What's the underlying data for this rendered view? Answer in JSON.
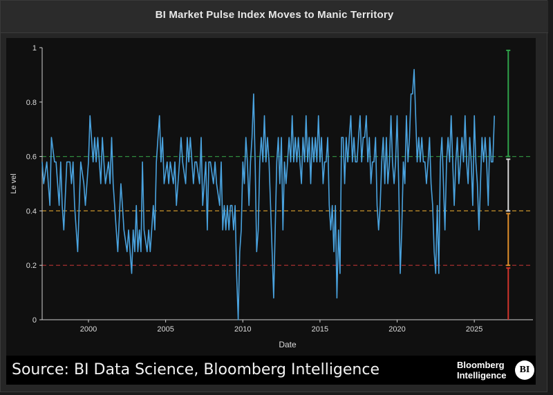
{
  "header": {
    "title": "BI Market Pulse Index Moves to Manic Territory"
  },
  "footer": {
    "source": "Source: BI Data Science, Bloomberg Intelligence",
    "logo_line1": "Bloomberg",
    "logo_line2": "Intelligence",
    "logo_mark": "BI"
  },
  "chart_data": {
    "type": "line",
    "xlabel": "Date",
    "ylabel": "Le vel",
    "xlim": [
      1997.0,
      2028.8
    ],
    "ylim": [
      0,
      1
    ],
    "x_ticks": [
      2000,
      2005,
      2010,
      2015,
      2020,
      2025
    ],
    "y_ticks": [
      0,
      0.2,
      0.4,
      0.6,
      0.8,
      1
    ],
    "y_tick_labels": [
      "0",
      "0.2",
      "0.4",
      "0.6",
      "0.8",
      "1"
    ],
    "line_color": "#4aa3df",
    "reference_lines": [
      {
        "y": 0.6,
        "color": "#2e8b3e",
        "style": "dashed"
      },
      {
        "y": 0.4,
        "color": "#c8922a",
        "style": "dashed"
      },
      {
        "y": 0.2,
        "color": "#b83232",
        "style": "dashed"
      }
    ],
    "range_bar": {
      "x": 2027.2,
      "segments": [
        {
          "from": 0.6,
          "to": 0.99,
          "color": "#2fa34a"
        },
        {
          "from": 0.4,
          "to": 0.59,
          "color": "#d8d8d8"
        },
        {
          "from": 0.2,
          "to": 0.39,
          "color": "#e08f2a"
        },
        {
          "from": 0.0,
          "to": 0.19,
          "color": "#d2342c"
        }
      ]
    },
    "series": [
      {
        "values": [
          [
            1997.0,
            0.58
          ],
          [
            1997.1,
            0.5
          ],
          [
            1997.3,
            0.58
          ],
          [
            1997.4,
            0.5
          ],
          [
            1997.5,
            0.42
          ],
          [
            1997.6,
            0.67
          ],
          [
            1997.8,
            0.58
          ],
          [
            1997.9,
            0.58
          ],
          [
            1998.1,
            0.42
          ],
          [
            1998.2,
            0.58
          ],
          [
            1998.3,
            0.42
          ],
          [
            1998.4,
            0.33
          ],
          [
            1998.6,
            0.58
          ],
          [
            1998.8,
            0.58
          ],
          [
            1998.9,
            0.5
          ],
          [
            1999.0,
            0.58
          ],
          [
            1999.1,
            0.42
          ],
          [
            1999.3,
            0.25
          ],
          [
            1999.4,
            0.42
          ],
          [
            1999.5,
            0.58
          ],
          [
            1999.7,
            0.5
          ],
          [
            1999.8,
            0.42
          ],
          [
            2000.0,
            0.58
          ],
          [
            2000.1,
            0.75
          ],
          [
            2000.3,
            0.58
          ],
          [
            2000.4,
            0.67
          ],
          [
            2000.5,
            0.58
          ],
          [
            2000.6,
            0.67
          ],
          [
            2000.8,
            0.5
          ],
          [
            2000.9,
            0.67
          ],
          [
            2001.0,
            0.58
          ],
          [
            2001.1,
            0.5
          ],
          [
            2001.3,
            0.58
          ],
          [
            2001.4,
            0.5
          ],
          [
            2001.5,
            0.67
          ],
          [
            2001.6,
            0.5
          ],
          [
            2001.8,
            0.33
          ],
          [
            2001.9,
            0.25
          ],
          [
            2002.1,
            0.5
          ],
          [
            2002.2,
            0.42
          ],
          [
            2002.3,
            0.33
          ],
          [
            2002.5,
            0.25
          ],
          [
            2002.6,
            0.33
          ],
          [
            2002.8,
            0.17
          ],
          [
            2002.9,
            0.33
          ],
          [
            2003.0,
            0.25
          ],
          [
            2003.1,
            0.42
          ],
          [
            2003.2,
            0.25
          ],
          [
            2003.3,
            0.33
          ],
          [
            2003.4,
            0.25
          ],
          [
            2003.5,
            0.58
          ],
          [
            2003.6,
            0.33
          ],
          [
            2003.8,
            0.25
          ],
          [
            2003.9,
            0.33
          ],
          [
            2004.0,
            0.25
          ],
          [
            2004.2,
            0.42
          ],
          [
            2004.3,
            0.33
          ],
          [
            2004.4,
            0.58
          ],
          [
            2004.6,
            0.75
          ],
          [
            2004.7,
            0.58
          ],
          [
            2004.8,
            0.67
          ],
          [
            2004.9,
            0.5
          ],
          [
            2005.1,
            0.58
          ],
          [
            2005.2,
            0.5
          ],
          [
            2005.3,
            0.58
          ],
          [
            2005.5,
            0.5
          ],
          [
            2005.6,
            0.58
          ],
          [
            2005.7,
            0.42
          ],
          [
            2005.9,
            0.58
          ],
          [
            2006.0,
            0.67
          ],
          [
            2006.1,
            0.58
          ],
          [
            2006.3,
            0.5
          ],
          [
            2006.4,
            0.67
          ],
          [
            2006.5,
            0.58
          ],
          [
            2006.6,
            0.67
          ],
          [
            2006.8,
            0.5
          ],
          [
            2006.9,
            0.58
          ],
          [
            2007.0,
            0.58
          ],
          [
            2007.2,
            0.5
          ],
          [
            2007.3,
            0.67
          ],
          [
            2007.4,
            0.42
          ],
          [
            2007.6,
            0.58
          ],
          [
            2007.7,
            0.33
          ],
          [
            2007.8,
            0.58
          ],
          [
            2007.9,
            0.58
          ],
          [
            2008.1,
            0.5
          ],
          [
            2008.2,
            0.58
          ],
          [
            2008.3,
            0.5
          ],
          [
            2008.5,
            0.42
          ],
          [
            2008.6,
            0.58
          ],
          [
            2008.7,
            0.33
          ],
          [
            2008.8,
            0.42
          ],
          [
            2008.9,
            0.33
          ],
          [
            2009.0,
            0.42
          ],
          [
            2009.1,
            0.33
          ],
          [
            2009.2,
            0.42
          ],
          [
            2009.3,
            0.42
          ],
          [
            2009.4,
            0.33
          ],
          [
            2009.5,
            0.42
          ],
          [
            2009.6,
            0.17
          ],
          [
            2009.7,
            0.0
          ],
          [
            2009.8,
            0.25
          ],
          [
            2009.9,
            0.33
          ],
          [
            2010.0,
            0.58
          ],
          [
            2010.1,
            0.5
          ],
          [
            2010.2,
            0.67
          ],
          [
            2010.3,
            0.58
          ],
          [
            2010.4,
            0.42
          ],
          [
            2010.5,
            0.58
          ],
          [
            2010.6,
            0.67
          ],
          [
            2010.7,
            0.83
          ],
          [
            2010.8,
            0.58
          ],
          [
            2010.9,
            0.25
          ],
          [
            2011.0,
            0.33
          ],
          [
            2011.1,
            0.58
          ],
          [
            2011.2,
            0.67
          ],
          [
            2011.3,
            0.58
          ],
          [
            2011.4,
            0.75
          ],
          [
            2011.5,
            0.58
          ],
          [
            2011.6,
            0.67
          ],
          [
            2011.7,
            0.58
          ],
          [
            2011.8,
            0.42
          ],
          [
            2011.9,
            0.25
          ],
          [
            2012.0,
            0.08
          ],
          [
            2012.1,
            0.33
          ],
          [
            2012.2,
            0.58
          ],
          [
            2012.3,
            0.67
          ],
          [
            2012.4,
            0.5
          ],
          [
            2012.5,
            0.67
          ],
          [
            2012.6,
            0.33
          ],
          [
            2012.7,
            0.58
          ],
          [
            2012.8,
            0.5
          ],
          [
            2012.9,
            0.58
          ],
          [
            2013.0,
            0.67
          ],
          [
            2013.1,
            0.58
          ],
          [
            2013.2,
            0.75
          ],
          [
            2013.3,
            0.58
          ],
          [
            2013.4,
            0.67
          ],
          [
            2013.5,
            0.58
          ],
          [
            2013.6,
            0.67
          ],
          [
            2013.7,
            0.58
          ],
          [
            2013.8,
            0.5
          ],
          [
            2013.9,
            0.67
          ],
          [
            2014.0,
            0.58
          ],
          [
            2014.1,
            0.75
          ],
          [
            2014.2,
            0.58
          ],
          [
            2014.3,
            0.67
          ],
          [
            2014.4,
            0.5
          ],
          [
            2014.5,
            0.67
          ],
          [
            2014.6,
            0.58
          ],
          [
            2014.7,
            0.67
          ],
          [
            2014.8,
            0.58
          ],
          [
            2014.9,
            0.75
          ],
          [
            2015.0,
            0.58
          ],
          [
            2015.1,
            0.67
          ],
          [
            2015.2,
            0.5
          ],
          [
            2015.3,
            0.58
          ],
          [
            2015.4,
            0.58
          ],
          [
            2015.5,
            0.67
          ],
          [
            2015.6,
            0.42
          ],
          [
            2015.7,
            0.33
          ],
          [
            2015.8,
            0.42
          ],
          [
            2015.9,
            0.25
          ],
          [
            2016.0,
            0.42
          ],
          [
            2016.1,
            0.08
          ],
          [
            2016.2,
            0.33
          ],
          [
            2016.3,
            0.17
          ],
          [
            2016.4,
            0.67
          ],
          [
            2016.5,
            0.67
          ],
          [
            2016.6,
            0.5
          ],
          [
            2016.7,
            0.67
          ],
          [
            2016.8,
            0.58
          ],
          [
            2016.9,
            0.67
          ],
          [
            2017.0,
            0.75
          ],
          [
            2017.1,
            0.58
          ],
          [
            2017.2,
            0.67
          ],
          [
            2017.3,
            0.58
          ],
          [
            2017.4,
            0.58
          ],
          [
            2017.5,
            0.67
          ],
          [
            2017.6,
            0.75
          ],
          [
            2017.7,
            0.58
          ],
          [
            2017.8,
            0.67
          ],
          [
            2017.9,
            0.67
          ],
          [
            2018.0,
            0.75
          ],
          [
            2018.1,
            0.58
          ],
          [
            2018.2,
            0.67
          ],
          [
            2018.3,
            0.5
          ],
          [
            2018.4,
            0.58
          ],
          [
            2018.5,
            0.58
          ],
          [
            2018.6,
            0.67
          ],
          [
            2018.7,
            0.42
          ],
          [
            2018.8,
            0.33
          ],
          [
            2018.9,
            0.42
          ],
          [
            2019.0,
            0.58
          ],
          [
            2019.1,
            0.67
          ],
          [
            2019.2,
            0.5
          ],
          [
            2019.3,
            0.67
          ],
          [
            2019.4,
            0.5
          ],
          [
            2019.5,
            0.58
          ],
          [
            2019.6,
            0.75
          ],
          [
            2019.7,
            0.58
          ],
          [
            2019.8,
            0.5
          ],
          [
            2019.9,
            0.58
          ],
          [
            2020.0,
            0.75
          ],
          [
            2020.1,
            0.5
          ],
          [
            2020.2,
            0.17
          ],
          [
            2020.3,
            0.33
          ],
          [
            2020.4,
            0.58
          ],
          [
            2020.5,
            0.5
          ],
          [
            2020.6,
            0.75
          ],
          [
            2020.7,
            0.58
          ],
          [
            2020.8,
            0.67
          ],
          [
            2020.9,
            0.83
          ],
          [
            2021.0,
            0.83
          ],
          [
            2021.1,
            0.92
          ],
          [
            2021.2,
            0.75
          ],
          [
            2021.3,
            0.58
          ],
          [
            2021.4,
            0.67
          ],
          [
            2021.5,
            0.58
          ],
          [
            2021.6,
            0.67
          ],
          [
            2021.7,
            0.58
          ],
          [
            2021.8,
            0.58
          ],
          [
            2021.9,
            0.5
          ],
          [
            2022.0,
            0.58
          ],
          [
            2022.1,
            0.67
          ],
          [
            2022.2,
            0.5
          ],
          [
            2022.3,
            0.42
          ],
          [
            2022.4,
            0.25
          ],
          [
            2022.5,
            0.17
          ],
          [
            2022.6,
            0.42
          ],
          [
            2022.7,
            0.17
          ],
          [
            2022.8,
            0.58
          ],
          [
            2022.9,
            0.67
          ],
          [
            2023.0,
            0.5
          ],
          [
            2023.1,
            0.33
          ],
          [
            2023.2,
            0.58
          ],
          [
            2023.3,
            0.67
          ],
          [
            2023.4,
            0.58
          ],
          [
            2023.5,
            0.75
          ],
          [
            2023.6,
            0.58
          ],
          [
            2023.7,
            0.42
          ],
          [
            2023.8,
            0.58
          ],
          [
            2023.9,
            0.67
          ],
          [
            2024.0,
            0.5
          ],
          [
            2024.1,
            0.58
          ],
          [
            2024.2,
            0.67
          ],
          [
            2024.3,
            0.58
          ],
          [
            2024.4,
            0.75
          ],
          [
            2024.5,
            0.58
          ],
          [
            2024.6,
            0.5
          ],
          [
            2024.7,
            0.67
          ],
          [
            2024.8,
            0.58
          ],
          [
            2024.9,
            0.42
          ],
          [
            2025.0,
            0.75
          ],
          [
            2025.1,
            0.58
          ],
          [
            2025.2,
            0.5
          ],
          [
            2025.3,
            0.33
          ],
          [
            2025.4,
            0.5
          ],
          [
            2025.5,
            0.67
          ],
          [
            2025.6,
            0.58
          ],
          [
            2025.7,
            0.67
          ],
          [
            2025.8,
            0.58
          ],
          [
            2025.9,
            0.42
          ],
          [
            2026.0,
            0.67
          ],
          [
            2026.1,
            0.58
          ],
          [
            2026.2,
            0.58
          ],
          [
            2026.3,
            0.75
          ]
        ]
      }
    ]
  }
}
